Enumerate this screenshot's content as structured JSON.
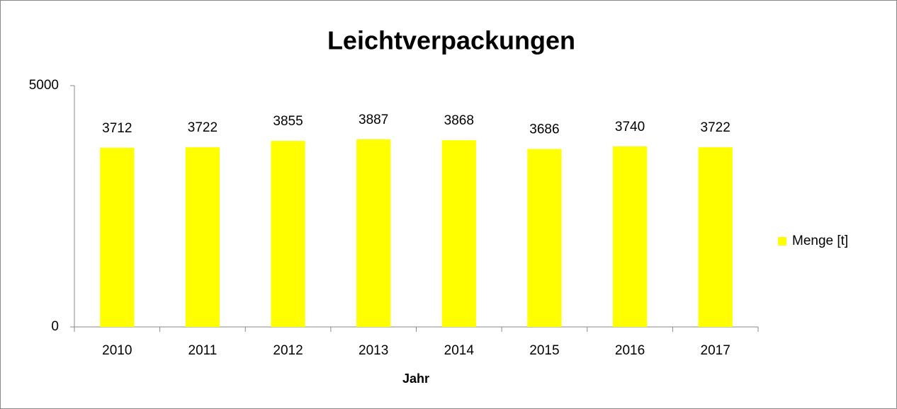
{
  "chart_data": {
    "type": "bar",
    "title": "Leichtverpackungen",
    "x_label": "Jahr",
    "categories": [
      "2010",
      "2011",
      "2012",
      "2013",
      "2014",
      "2015",
      "2016",
      "2017"
    ],
    "series": [
      {
        "name": "Menge [t]",
        "color": "#ffff00",
        "values": [
          3712,
          3722,
          3855,
          3887,
          3868,
          3686,
          3740,
          3722
        ]
      }
    ],
    "ylim": [
      0,
      5000
    ],
    "yticks": [
      0,
      5000
    ],
    "grid": false,
    "legend": "right",
    "data_labels": true
  }
}
